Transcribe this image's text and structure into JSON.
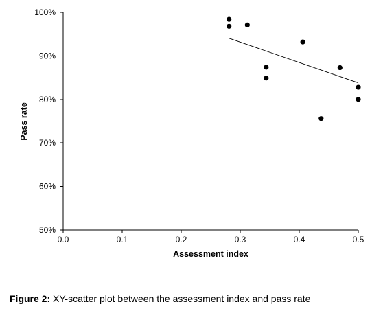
{
  "chart_data": {
    "type": "scatter",
    "xlabel": "Assessment index",
    "ylabel": "Pass rate",
    "xlim": [
      0.0,
      0.5
    ],
    "ylim": [
      0.5,
      1.0
    ],
    "x_ticks": [
      0.0,
      0.1,
      0.2,
      0.3,
      0.4,
      0.5
    ],
    "x_tick_labels": [
      "0.0",
      "0.1",
      "0.2",
      "0.3",
      "0.4",
      "0.5"
    ],
    "y_ticks": [
      0.5,
      0.6,
      0.7,
      0.8,
      0.9,
      1.0
    ],
    "y_tick_labels": [
      "50%",
      "60%",
      "70%",
      "80%",
      "90%",
      "100%"
    ],
    "grid": false,
    "legend": "none",
    "marker_color": "#000000",
    "points": [
      {
        "x": 0.281,
        "y": 0.984
      },
      {
        "x": 0.281,
        "y": 0.968
      },
      {
        "x": 0.312,
        "y": 0.971
      },
      {
        "x": 0.344,
        "y": 0.874
      },
      {
        "x": 0.344,
        "y": 0.849
      },
      {
        "x": 0.406,
        "y": 0.932
      },
      {
        "x": 0.437,
        "y": 0.756
      },
      {
        "x": 0.469,
        "y": 0.873
      },
      {
        "x": 0.5,
        "y": 0.828
      },
      {
        "x": 0.5,
        "y": 0.8
      }
    ],
    "trendline": {
      "x": [
        0.28,
        0.5
      ],
      "y": [
        0.941,
        0.838
      ]
    }
  },
  "caption": {
    "label": "Figure 2:",
    "text": " XY-scatter plot between the assessment index and pass rate"
  }
}
